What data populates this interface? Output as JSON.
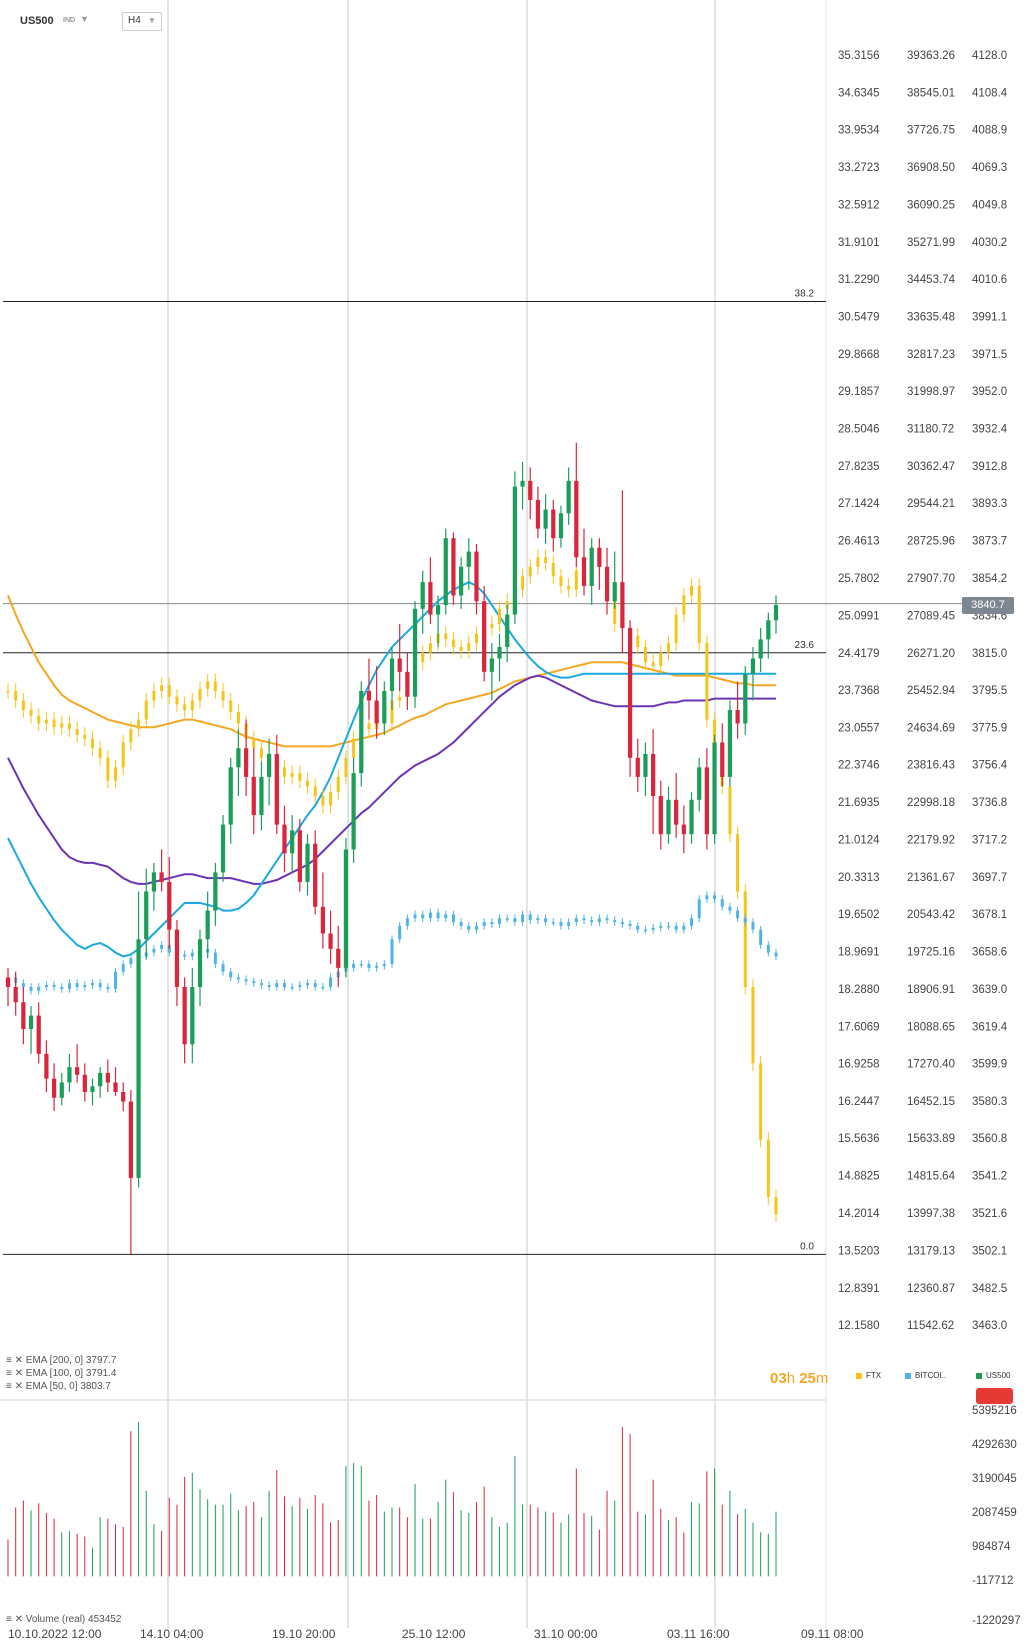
{
  "header": {
    "symbol": "US500",
    "symbol_type": "IND",
    "timeframe": "H4",
    "dropdown_glyph": "▼"
  },
  "chart_data": {
    "type": "candlestick",
    "title": "US500",
    "timeframe": "H4",
    "y_axes": {
      "ftx": [
        "35.3156",
        "34.6345",
        "33.9534",
        "33.2723",
        "32.5912",
        "31.9101",
        "31.2290",
        "30.5479",
        "29.8668",
        "29.1857",
        "28.5046",
        "27.8235",
        "27.1424",
        "26.4613",
        "25.7802",
        "25.0991",
        "24.4179",
        "23.7368",
        "23.0557",
        "22.3746",
        "21.6935",
        "21.0124",
        "20.3313",
        "19.6502",
        "18.9691",
        "18.2880",
        "17.6069",
        "16.9258",
        "16.2447",
        "15.5636",
        "14.8825",
        "14.2014",
        "13.5203",
        "12.8391",
        "12.1580"
      ],
      "bitcoin": [
        "39363.26",
        "38545.01",
        "37726.75",
        "36908.50",
        "36090.25",
        "35271.99",
        "34453.74",
        "33635.48",
        "32817.23",
        "31998.97",
        "31180.72",
        "30362.47",
        "29544.21",
        "28725.96",
        "27907.70",
        "27089.45",
        "26271.20",
        "25452.94",
        "24634.69",
        "23816.43",
        "22998.18",
        "22179.92",
        "21361.67",
        "20543.42",
        "19725.16",
        "18906.91",
        "18088.65",
        "17270.40",
        "16452.15",
        "15633.89",
        "14815.64",
        "13997.38",
        "13179.13",
        "12360.87",
        "11542.62"
      ],
      "us500": [
        "4128.0",
        "4108.4",
        "4088.9",
        "4069.3",
        "4049.8",
        "4030.2",
        "4010.6",
        "3991.1",
        "3971.5",
        "3952.0",
        "3932.4",
        "3912.8",
        "3893.3",
        "3873.7",
        "3854.2",
        "3834.6",
        "3815.0",
        "3795.5",
        "3775.9",
        "3756.4",
        "3736.8",
        "3717.2",
        "3697.7",
        "3678.1",
        "3658.6",
        "3639.0",
        "3619.4",
        "3599.9",
        "3580.3",
        "3560.8",
        "3541.2",
        "3521.6",
        "3502.1",
        "3482.5",
        "3463.0"
      ]
    },
    "volume_axis": [
      "5395216",
      "4292630",
      "3190045",
      "2087459",
      "984874",
      "-117712",
      "-1220297"
    ],
    "x_labels": [
      "10.10.2022 12:00",
      "14.10 04:00",
      "19.10 20:00",
      "25.10 12:00",
      "31.10 00:00",
      "03.11 16:00",
      "09.11 08:00"
    ],
    "fib_levels": [
      {
        "label": "38.2",
        "price": 3998.9
      },
      {
        "label": "23.6",
        "price": 3815.0
      },
      {
        "label": "0.0",
        "price": 3500.0
      }
    ],
    "current_price": "3840.7",
    "us500_ohlc": [
      [
        3645,
        3650,
        3630,
        3640
      ],
      [
        3640,
        3648,
        3625,
        3632
      ],
      [
        3632,
        3640,
        3610,
        3618
      ],
      [
        3618,
        3630,
        3605,
        3625
      ],
      [
        3625,
        3632,
        3600,
        3605
      ],
      [
        3605,
        3612,
        3585,
        3592
      ],
      [
        3592,
        3600,
        3575,
        3582
      ],
      [
        3582,
        3595,
        3578,
        3590
      ],
      [
        3590,
        3605,
        3585,
        3598
      ],
      [
        3598,
        3610,
        3590,
        3594
      ],
      [
        3594,
        3600,
        3580,
        3585
      ],
      [
        3585,
        3592,
        3578,
        3588
      ],
      [
        3588,
        3598,
        3582,
        3595
      ],
      [
        3595,
        3602,
        3585,
        3590
      ],
      [
        3590,
        3598,
        3583,
        3585
      ],
      [
        3585,
        3590,
        3575,
        3580
      ],
      [
        3580,
        3586,
        3500,
        3540
      ],
      [
        3540,
        3690,
        3535,
        3665
      ],
      [
        3665,
        3702,
        3655,
        3690
      ],
      [
        3690,
        3705,
        3680,
        3700
      ],
      [
        3700,
        3712,
        3690,
        3695
      ],
      [
        3695,
        3708,
        3660,
        3670
      ],
      [
        3670,
        3675,
        3630,
        3640
      ],
      [
        3640,
        3645,
        3600,
        3610
      ],
      [
        3610,
        3650,
        3600,
        3640
      ],
      [
        3640,
        3670,
        3630,
        3665
      ],
      [
        3665,
        3690,
        3655,
        3680
      ],
      [
        3680,
        3705,
        3672,
        3700
      ],
      [
        3700,
        3730,
        3695,
        3725
      ],
      [
        3725,
        3760,
        3715,
        3755
      ],
      [
        3755,
        3775,
        3740,
        3765
      ],
      [
        3765,
        3780,
        3740,
        3750
      ],
      [
        3750,
        3765,
        3720,
        3730
      ],
      [
        3730,
        3758,
        3722,
        3750
      ],
      [
        3750,
        3770,
        3735,
        3762
      ],
      [
        3762,
        3772,
        3720,
        3725
      ],
      [
        3725,
        3735,
        3700,
        3710
      ],
      [
        3710,
        3730,
        3700,
        3722
      ],
      [
        3722,
        3728,
        3690,
        3695
      ],
      [
        3695,
        3720,
        3688,
        3715
      ],
      [
        3715,
        3722,
        3678,
        3682
      ],
      [
        3682,
        3700,
        3660,
        3668
      ],
      [
        3668,
        3680,
        3652,
        3660
      ],
      [
        3660,
        3672,
        3640,
        3650
      ],
      [
        3650,
        3718,
        3645,
        3712
      ],
      [
        3712,
        3760,
        3705,
        3752
      ],
      [
        3752,
        3800,
        3745,
        3795
      ],
      [
        3795,
        3812,
        3780,
        3790
      ],
      [
        3790,
        3808,
        3770,
        3778
      ],
      [
        3778,
        3800,
        3772,
        3795
      ],
      [
        3795,
        3818,
        3785,
        3812
      ],
      [
        3812,
        3830,
        3795,
        3805
      ],
      [
        3805,
        3815,
        3785,
        3792
      ],
      [
        3792,
        3842,
        3786,
        3838
      ],
      [
        3838,
        3858,
        3825,
        3852
      ],
      [
        3852,
        3865,
        3830,
        3835
      ],
      [
        3835,
        3845,
        3818,
        3840
      ],
      [
        3840,
        3880,
        3835,
        3875
      ],
      [
        3875,
        3878,
        3840,
        3845
      ],
      [
        3845,
        3865,
        3838,
        3860
      ],
      [
        3860,
        3875,
        3848,
        3868
      ],
      [
        3868,
        3872,
        3835,
        3842
      ],
      [
        3842,
        3850,
        3800,
        3805
      ],
      [
        3805,
        3820,
        3790,
        3812
      ],
      [
        3812,
        3825,
        3800,
        3818
      ],
      [
        3818,
        3840,
        3810,
        3835
      ],
      [
        3835,
        3910,
        3830,
        3902
      ],
      [
        3902,
        3915,
        3890,
        3905
      ],
      [
        3905,
        3912,
        3885,
        3895
      ],
      [
        3895,
        3902,
        3875,
        3880
      ],
      [
        3880,
        3898,
        3872,
        3890
      ],
      [
        3890,
        3895,
        3868,
        3875
      ],
      [
        3875,
        3892,
        3870,
        3888
      ],
      [
        3888,
        3912,
        3882,
        3905
      ],
      [
        3905,
        3925,
        3860,
        3865
      ],
      [
        3865,
        3880,
        3845,
        3850
      ],
      [
        3850,
        3875,
        3840,
        3870
      ],
      [
        3870,
        3875,
        3848,
        3860
      ],
      [
        3860,
        3870,
        3835,
        3842
      ],
      [
        3842,
        3868,
        3838,
        3852
      ],
      [
        3852,
        3900,
        3815,
        3828
      ],
      [
        3828,
        3832,
        3750,
        3760
      ],
      [
        3760,
        3770,
        3742,
        3750
      ],
      [
        3750,
        3768,
        3740,
        3762
      ],
      [
        3762,
        3775,
        3720,
        3740
      ],
      [
        3740,
        3748,
        3712,
        3720
      ],
      [
        3720,
        3745,
        3715,
        3738
      ],
      [
        3738,
        3752,
        3718,
        3725
      ],
      [
        3725,
        3735,
        3710,
        3720
      ],
      [
        3720,
        3742,
        3715,
        3738
      ],
      [
        3738,
        3760,
        3732,
        3755
      ],
      [
        3755,
        3765,
        3712,
        3720
      ],
      [
        3720,
        3772,
        3715,
        3768
      ],
      [
        3768,
        3778,
        3745,
        3750
      ],
      [
        3750,
        3790,
        3745,
        3785
      ],
      [
        3785,
        3800,
        3770,
        3778
      ],
      [
        3778,
        3808,
        3772,
        3804
      ],
      [
        3804,
        3818,
        3790,
        3812
      ],
      [
        3812,
        3828,
        3805,
        3822
      ],
      [
        3822,
        3836,
        3812,
        3832
      ],
      [
        3832,
        3845,
        3825,
        3840
      ]
    ],
    "ftx_close_series": [
      3795,
      3790,
      3785,
      3782,
      3778,
      3780,
      3776,
      3778,
      3775,
      3772,
      3770,
      3765,
      3760,
      3748,
      3755,
      3768,
      3775,
      3780,
      3790,
      3795,
      3798,
      3792,
      3788,
      3785,
      3790,
      3796,
      3800,
      3795,
      3790,
      3784,
      3778,
      3770,
      3765,
      3760,
      3752,
      3755,
      3750,
      3752,
      3748,
      3745,
      3740,
      3735,
      3742,
      3750,
      3760,
      3770,
      3778,
      3775,
      3780,
      3778,
      3790,
      3792,
      3800,
      3810,
      3815,
      3820,
      3825,
      3822,
      3818,
      3816,
      3820,
      3825,
      3828,
      3830,
      3838,
      3842,
      3848,
      3855,
      3860,
      3865,
      3862,
      3855,
      3850,
      3848,
      3858,
      3865,
      3870,
      3860,
      3850,
      3830,
      3828,
      3824,
      3818,
      3810,
      3808,
      3815,
      3820,
      3835,
      3845,
      3850,
      3820,
      3780,
      3760,
      3745,
      3720,
      3690,
      3640,
      3600,
      3560,
      3530,
      3521
    ],
    "bitcoin_close_series": [
      3645,
      3642,
      3640,
      3638,
      3640,
      3641,
      3640,
      3639,
      3642,
      3640,
      3641,
      3642,
      3640,
      3639,
      3648,
      3652,
      3655,
      3656,
      3658,
      3660,
      3662,
      3658,
      3657,
      3656,
      3658,
      3660,
      3658,
      3652,
      3648,
      3645,
      3644,
      3643,
      3642,
      3641,
      3640,
      3642,
      3640,
      3640,
      3641,
      3642,
      3640,
      3640,
      3645,
      3648,
      3650,
      3652,
      3652,
      3650,
      3651,
      3652,
      3665,
      3672,
      3676,
      3678,
      3676,
      3679,
      3676,
      3678,
      3674,
      3672,
      3670,
      3672,
      3674,
      3673,
      3676,
      3676,
      3674,
      3678,
      3675,
      3676,
      3674,
      3674,
      3672,
      3674,
      3676,
      3675,
      3674,
      3676,
      3675,
      3674,
      3673,
      3672,
      3670,
      3670,
      3671,
      3672,
      3672,
      3670,
      3672,
      3676,
      3686,
      3688,
      3686,
      3682,
      3680,
      3676,
      3674,
      3670,
      3662,
      3658,
      3656
    ],
    "ema": [
      {
        "name": "EMA [200, 0] 3797.7",
        "color": "#f5a623",
        "values": [
          3845,
          3835,
          3826,
          3818,
          3810,
          3804,
          3798,
          3793,
          3790,
          3788,
          3786,
          3784,
          3782,
          3780,
          3779,
          3778,
          3777,
          3776,
          3776,
          3776,
          3777,
          3778,
          3779,
          3780,
          3780,
          3779,
          3778,
          3777,
          3776,
          3775,
          3773,
          3771,
          3770,
          3769,
          3768,
          3767,
          3766,
          3766,
          3766,
          3766,
          3766,
          3766,
          3766,
          3767,
          3768,
          3769,
          3770,
          3771,
          3772,
          3773,
          3775,
          3777,
          3779,
          3781,
          3782,
          3784,
          3786,
          3788,
          3789,
          3790,
          3791,
          3792,
          3793,
          3794,
          3796,
          3798,
          3800,
          3801,
          3802,
          3803,
          3804,
          3805,
          3806,
          3807,
          3808,
          3809,
          3810,
          3810,
          3810,
          3810,
          3810,
          3809,
          3808,
          3807,
          3806,
          3805,
          3804,
          3803,
          3803,
          3803,
          3803,
          3803,
          3802,
          3801,
          3800,
          3799,
          3799,
          3798,
          3798,
          3798,
          3798
        ]
      },
      {
        "name": "EMA [100, 0] 3791.4",
        "color": "#6a35b5",
        "values": [
          3760,
          3752,
          3744,
          3737,
          3730,
          3724,
          3718,
          3712,
          3708,
          3706,
          3705,
          3705,
          3704,
          3703,
          3700,
          3697,
          3695,
          3694,
          3694,
          3695,
          3696,
          3697,
          3698,
          3699,
          3699,
          3698,
          3697,
          3697,
          3697,
          3697,
          3696,
          3695,
          3694,
          3694,
          3695,
          3696,
          3698,
          3700,
          3702,
          3704,
          3707,
          3711,
          3715,
          3719,
          3723,
          3727,
          3731,
          3734,
          3738,
          3742,
          3746,
          3750,
          3753,
          3756,
          3758,
          3760,
          3762,
          3765,
          3768,
          3772,
          3776,
          3780,
          3784,
          3788,
          3792,
          3795,
          3798,
          3800,
          3802,
          3803,
          3802,
          3800,
          3798,
          3796,
          3794,
          3792,
          3790,
          3789,
          3788,
          3787,
          3787,
          3787,
          3787,
          3787,
          3787,
          3788,
          3789,
          3789,
          3790,
          3790,
          3790,
          3790,
          3791,
          3791,
          3791,
          3791,
          3791,
          3791,
          3791,
          3791,
          3791
        ]
      },
      {
        "name": "EMA [50, 0] 3803.7",
        "color": "#1aa9e0",
        "values": [
          3718,
          3710,
          3702,
          3694,
          3687,
          3681,
          3675,
          3670,
          3666,
          3662,
          3660,
          3662,
          3663,
          3661,
          3658,
          3656,
          3657,
          3660,
          3664,
          3668,
          3672,
          3676,
          3680,
          3684,
          3684,
          3684,
          3683,
          3682,
          3680,
          3680,
          3681,
          3684,
          3688,
          3694,
          3700,
          3706,
          3712,
          3718,
          3724,
          3730,
          3735,
          3742,
          3750,
          3760,
          3770,
          3780,
          3790,
          3798,
          3806,
          3812,
          3818,
          3822,
          3826,
          3830,
          3834,
          3838,
          3842,
          3845,
          3848,
          3850,
          3852,
          3850,
          3846,
          3840,
          3834,
          3828,
          3822,
          3817,
          3812,
          3808,
          3805,
          3803,
          3802,
          3802,
          3803,
          3804,
          3804,
          3804,
          3804,
          3804,
          3804,
          3804,
          3804,
          3804,
          3804,
          3804,
          3804,
          3804,
          3804,
          3804,
          3804,
          3804,
          3804,
          3804,
          3804,
          3804,
          3804,
          3804,
          3804,
          3804,
          3804
        ]
      }
    ],
    "volume_legend": "Volume (real) 453452",
    "legend": [
      "FTX",
      "BITCOI..",
      "US500"
    ],
    "timer": {
      "hours": "03",
      "h": "h",
      "minutes": "25",
      "m": "m"
    }
  }
}
